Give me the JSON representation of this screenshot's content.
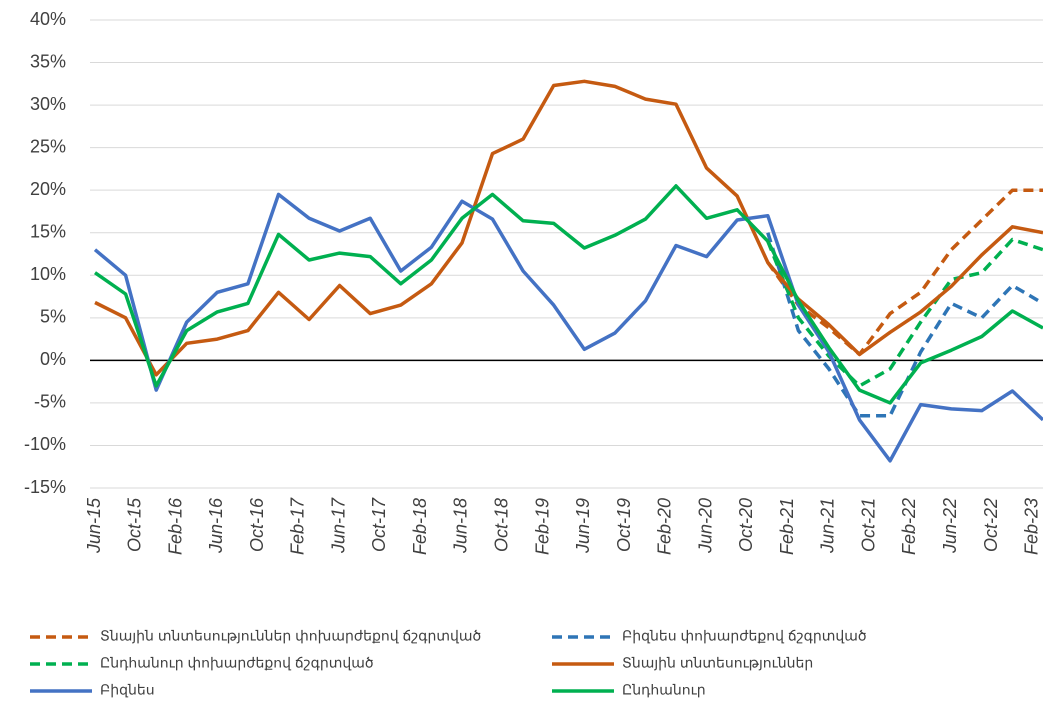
{
  "chart_data": {
    "type": "line",
    "x": [
      "2015-06",
      "2015-09",
      "2015-12",
      "2016-03",
      "2016-06",
      "2016-09",
      "2016-12",
      "2017-03",
      "2017-06",
      "2017-09",
      "2017-12",
      "2018-03",
      "2018-06",
      "2018-09",
      "2018-12",
      "2019-03",
      "2019-06",
      "2019-09",
      "2019-12",
      "2020-03",
      "2020-06",
      "2020-09",
      "2020-12",
      "2021-03",
      "2021-06",
      "2021-09",
      "2021-12",
      "2022-03",
      "2022-06",
      "2022-09",
      "2022-12",
      "2023-03"
    ],
    "xlim": [
      "2015-06",
      "2023-03"
    ],
    "xticks": [
      {
        "value": "2015-06",
        "label": "Jun-15"
      },
      {
        "value": "2015-10",
        "label": "Oct-15"
      },
      {
        "value": "2016-02",
        "label": "Feb-16"
      },
      {
        "value": "2016-06",
        "label": "Jun-16"
      },
      {
        "value": "2016-10",
        "label": "Oct-16"
      },
      {
        "value": "2017-02",
        "label": "Feb-17"
      },
      {
        "value": "2017-06",
        "label": "Jun-17"
      },
      {
        "value": "2017-10",
        "label": "Oct-17"
      },
      {
        "value": "2018-02",
        "label": "Feb-18"
      },
      {
        "value": "2018-06",
        "label": "Jun-18"
      },
      {
        "value": "2018-10",
        "label": "Oct-18"
      },
      {
        "value": "2019-02",
        "label": "Feb-19"
      },
      {
        "value": "2019-06",
        "label": "Jun-19"
      },
      {
        "value": "2019-10",
        "label": "Oct-19"
      },
      {
        "value": "2020-02",
        "label": "Feb-20"
      },
      {
        "value": "2020-06",
        "label": "Jun-20"
      },
      {
        "value": "2020-10",
        "label": "Oct-20"
      },
      {
        "value": "2021-02",
        "label": "Feb-21"
      },
      {
        "value": "2021-06",
        "label": "Jun-21"
      },
      {
        "value": "2021-10",
        "label": "Oct-21"
      },
      {
        "value": "2022-02",
        "label": "Feb-22"
      },
      {
        "value": "2022-06",
        "label": "Jun-22"
      },
      {
        "value": "2022-10",
        "label": "Oct-22"
      },
      {
        "value": "2023-02",
        "label": "Feb-23"
      }
    ],
    "ylim": [
      -15,
      40
    ],
    "yticks": [
      {
        "value": -15,
        "label": "-15%"
      },
      {
        "value": -10,
        "label": "-10%"
      },
      {
        "value": -5,
        "label": "-5%"
      },
      {
        "value": 0,
        "label": "0%"
      },
      {
        "value": 5,
        "label": "5%"
      },
      {
        "value": 10,
        "label": "10%"
      },
      {
        "value": 15,
        "label": "15%"
      },
      {
        "value": 20,
        "label": "20%"
      },
      {
        "value": 25,
        "label": "25%"
      },
      {
        "value": 30,
        "label": "30%"
      },
      {
        "value": 35,
        "label": "35%"
      },
      {
        "value": 40,
        "label": "40%"
      }
    ],
    "grid": true,
    "series": [
      {
        "name": "Տնային տնտեսություններ փոխարժեքով ճշգրտված",
        "color": "#c55a11",
        "dashed": true,
        "values": [
          null,
          null,
          null,
          null,
          null,
          null,
          null,
          null,
          null,
          null,
          null,
          null,
          null,
          null,
          null,
          null,
          null,
          null,
          null,
          null,
          null,
          null,
          11.5,
          6.5,
          3.8,
          0.7,
          5.5,
          8,
          13,
          16.5,
          20,
          20
        ]
      },
      {
        "name": "Բիզնես  փոխարժեքով ճշգրտված",
        "color": "#2e75b6",
        "dashed": true,
        "values": [
          null,
          null,
          null,
          null,
          null,
          null,
          null,
          null,
          null,
          null,
          null,
          null,
          null,
          null,
          null,
          null,
          null,
          null,
          null,
          null,
          null,
          null,
          15,
          3.5,
          -1,
          -6.5,
          -6.5,
          1,
          6.7,
          5,
          8.8,
          6.7
        ]
      },
      {
        "name": "Ընդհանուր  փոխարժեքով ճշգրտված",
        "color": "#00b050",
        "dashed": true,
        "values": [
          null,
          null,
          null,
          null,
          null,
          null,
          null,
          null,
          null,
          null,
          null,
          null,
          null,
          null,
          null,
          null,
          null,
          null,
          null,
          null,
          null,
          null,
          14,
          5,
          0.5,
          -3,
          -1,
          4.5,
          9.5,
          10.3,
          14.2,
          13
        ]
      },
      {
        "name": "Տնային տնտեսություններ",
        "color": "#c55a11",
        "dashed": false,
        "values": [
          6.8,
          5,
          -1.7,
          2,
          2.5,
          3.5,
          8,
          4.8,
          8.8,
          5.5,
          6.5,
          9,
          13.8,
          24.3,
          26,
          32.3,
          32.8,
          32.2,
          30.7,
          30.1,
          22.6,
          19.3,
          11.5,
          7.2,
          4.2,
          0.7,
          3.3,
          5.7,
          8.7,
          12.4,
          15.7,
          15
        ]
      },
      {
        "name": "Բիզնես",
        "color": "#4472c4",
        "dashed": false,
        "values": [
          13,
          10,
          -3.5,
          4.5,
          8,
          9,
          19.5,
          16.7,
          15.2,
          16.7,
          10.5,
          13.3,
          18.7,
          16.6,
          10.5,
          6.5,
          1.3,
          3.2,
          7,
          13.5,
          12.2,
          16.5,
          17,
          6.5,
          1,
          -7,
          -11.8,
          -5.2,
          -5.7,
          -5.9,
          -3.6,
          -7
        ]
      },
      {
        "name": "Ընդհանուր",
        "color": "#00b050",
        "dashed": false,
        "values": [
          10.3,
          7.8,
          -3,
          3.5,
          5.7,
          6.7,
          14.8,
          11.8,
          12.6,
          12.2,
          9,
          11.8,
          16.7,
          19.5,
          16.4,
          16.1,
          13.2,
          14.7,
          16.6,
          20.5,
          16.7,
          17.7,
          14,
          7,
          1.5,
          -3.5,
          -5,
          -0.3,
          1.2,
          2.8,
          5.8,
          3.8
        ]
      }
    ]
  }
}
